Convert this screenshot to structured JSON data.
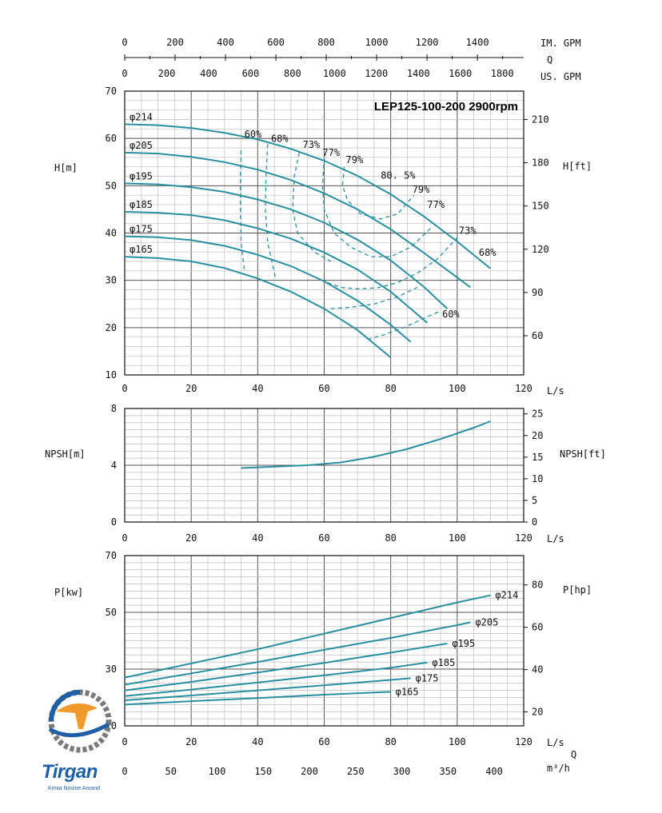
{
  "colors": {
    "curve": "#2a8fa0",
    "grid_major": "#555555",
    "grid_minor": "#bfbfbf",
    "axis": "#111111"
  },
  "logo": {
    "brand": "Tirgan",
    "tagline": "Kimia Novine Arvand",
    "icon": "pump-gear-logo-icon"
  },
  "top_scales": {
    "im_gpm": {
      "label": "IM. GPM",
      "ticks": [
        "0",
        "200",
        "400",
        "600",
        "800",
        "1000",
        "1200",
        "1400"
      ],
      "values": [
        0,
        200,
        400,
        600,
        800,
        1000,
        1200,
        1400
      ]
    },
    "q_label": "Q",
    "us_gpm": {
      "label": "US. GPM",
      "ticks": [
        "0",
        "200",
        "400",
        "600",
        "800",
        "1000",
        "1200",
        "1400",
        "1600",
        "1800"
      ],
      "values": [
        0,
        200,
        400,
        600,
        800,
        1000,
        1200,
        1400,
        1600,
        1800
      ]
    }
  },
  "bottom_scale": {
    "q_label": "Q",
    "unit": "m³/h",
    "ticks": [
      "0",
      "50",
      "100",
      "150",
      "200",
      "250",
      "300",
      "350",
      "400"
    ],
    "values": [
      0,
      50,
      100,
      150,
      200,
      250,
      300,
      350,
      400
    ]
  },
  "chart_data": [
    {
      "type": "line",
      "title": "LEP125-100-200 2900rpm",
      "xlabel": "L/s",
      "ylabel": "H[m]",
      "y2label": "H[ft]",
      "xlim": [
        0,
        120
      ],
      "ylim": [
        10,
        70
      ],
      "x_ticks": [
        "0",
        "20",
        "40",
        "60",
        "80",
        "100",
        "120"
      ],
      "y_ticks": [
        "10",
        "20",
        "30",
        "40",
        "50",
        "60",
        "70"
      ],
      "y2_ticks": [
        "60",
        "90",
        "120",
        "150",
        "180",
        "210"
      ],
      "y2_values": [
        60,
        90,
        120,
        150,
        180,
        210
      ],
      "series": [
        {
          "name": "φ214",
          "x": [
            0,
            10,
            20,
            30,
            40,
            50,
            60,
            70,
            80,
            90,
            100,
            110
          ],
          "y": [
            63,
            62.8,
            62.2,
            61.2,
            59.8,
            57.8,
            55.3,
            52.1,
            48.2,
            43.5,
            38.2,
            32.5
          ]
        },
        {
          "name": "φ205",
          "x": [
            0,
            10,
            20,
            30,
            40,
            50,
            60,
            70,
            80,
            90,
            100,
            104
          ],
          "y": [
            57,
            56.8,
            56.1,
            55,
            53.4,
            51.2,
            48.4,
            45,
            40.8,
            35.8,
            30.6,
            28.5
          ]
        },
        {
          "name": "φ195",
          "x": [
            0,
            10,
            20,
            30,
            40,
            50,
            60,
            70,
            80,
            90,
            97
          ],
          "y": [
            50.5,
            50.3,
            49.7,
            48.7,
            47.1,
            45,
            42.2,
            38.6,
            34.2,
            28.6,
            24
          ]
        },
        {
          "name": "φ185",
          "x": [
            0,
            10,
            20,
            30,
            40,
            50,
            60,
            70,
            80,
            91
          ],
          "y": [
            44.5,
            44.3,
            43.8,
            42.7,
            41,
            38.8,
            35.9,
            32.3,
            27.6,
            21
          ]
        },
        {
          "name": "φ175",
          "x": [
            0,
            10,
            20,
            30,
            40,
            50,
            60,
            70,
            80,
            86
          ],
          "y": [
            39.3,
            39.1,
            38.5,
            37.3,
            35.4,
            33,
            29.8,
            25.7,
            20.6,
            17
          ]
        },
        {
          "name": "φ165",
          "x": [
            0,
            10,
            20,
            30,
            40,
            50,
            60,
            70,
            80
          ],
          "y": [
            35,
            34.7,
            34,
            32.6,
            30.4,
            27.6,
            24,
            19.5,
            13.7
          ]
        }
      ],
      "efficiency_labels": [
        "60%",
        "68%",
        "73%",
        "77%",
        "79%",
        "80. 5%",
        "79%",
        "77%",
        "73%",
        "68%",
        "60%"
      ]
    },
    {
      "type": "line",
      "xlabel": "L/s",
      "ylabel": "NPSH[m]",
      "y2label": "NPSH[ft]",
      "xlim": [
        0,
        120
      ],
      "ylim": [
        0,
        8
      ],
      "x_ticks": [
        "0",
        "20",
        "40",
        "60",
        "80",
        "100",
        "120"
      ],
      "y_ticks": [
        "0",
        "4",
        "8"
      ],
      "y2_ticks": [
        "0",
        "5",
        "10",
        "15",
        "20",
        "25"
      ],
      "y2_values": [
        0,
        5,
        10,
        15,
        20,
        25
      ],
      "series": [
        {
          "x": [
            35,
            45,
            55,
            65,
            75,
            85,
            95,
            105,
            110
          ],
          "y": [
            3.8,
            3.9,
            4.0,
            4.2,
            4.6,
            5.15,
            5.85,
            6.65,
            7.1
          ]
        }
      ]
    },
    {
      "type": "line",
      "xlabel": "L/s",
      "ylabel": "P[kw]",
      "y2label": "P[hp]",
      "xlim": [
        0,
        120
      ],
      "ylim": [
        10,
        70
      ],
      "x_ticks": [
        "0",
        "20",
        "40",
        "60",
        "80",
        "100",
        "120"
      ],
      "y_ticks": [
        "10",
        "30",
        "50",
        "70"
      ],
      "y2_ticks": [
        "20",
        "40",
        "60",
        "80"
      ],
      "y2_values": [
        20,
        40,
        60,
        80
      ],
      "series": [
        {
          "name": "φ214",
          "x": [
            0,
            20,
            40,
            60,
            80,
            100,
            110
          ],
          "y": [
            27,
            32,
            37,
            42.5,
            48,
            53.5,
            56
          ]
        },
        {
          "name": "φ205",
          "x": [
            0,
            20,
            40,
            60,
            80,
            100,
            104
          ],
          "y": [
            24.5,
            28.5,
            32.5,
            36.8,
            41,
            45.5,
            46.5
          ]
        },
        {
          "name": "φ195",
          "x": [
            0,
            20,
            40,
            60,
            80,
            97
          ],
          "y": [
            22.5,
            25.5,
            28.8,
            32.2,
            35.8,
            39
          ]
        },
        {
          "name": "φ185",
          "x": [
            0,
            20,
            40,
            60,
            80,
            91
          ],
          "y": [
            20.5,
            22.8,
            25.3,
            27.8,
            30.5,
            32.3
          ]
        },
        {
          "name": "φ175",
          "x": [
            0,
            20,
            40,
            60,
            80,
            86
          ],
          "y": [
            19,
            20.7,
            22.5,
            24.3,
            26.2,
            26.8
          ]
        },
        {
          "name": "φ165",
          "x": [
            0,
            20,
            40,
            60,
            80
          ],
          "y": [
            17.5,
            18.7,
            19.8,
            21,
            22
          ]
        }
      ]
    }
  ]
}
